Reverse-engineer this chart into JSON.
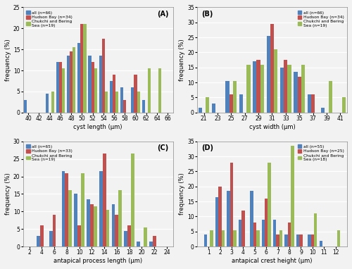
{
  "A": {
    "title": "(A)",
    "xlabel": "cyst length (μm)",
    "ylabel": "frequency (%)",
    "xlim": [
      39,
      67
    ],
    "ylim": [
      0,
      25
    ],
    "xticks": [
      40,
      42,
      44,
      46,
      48,
      50,
      52,
      54,
      56,
      58,
      60,
      62,
      64,
      66
    ],
    "yticks": [
      0,
      5,
      10,
      15,
      20,
      25
    ],
    "legend_loc": "upper left",
    "bin_width": 2,
    "all_n": 66,
    "hb_n": 34,
    "cb_n": 19,
    "all": {
      "40": 3.0,
      "44": 4.5,
      "46": 12.0,
      "48": 13.5,
      "50": 16.5,
      "52": 13.5,
      "54": 13.5,
      "56": 7.5,
      "58": 6.0,
      "60": 6.0,
      "62": 3.0
    },
    "hb": {
      "46": 12.0,
      "48": 14.5,
      "50": 21.0,
      "52": 12.0,
      "54": 17.5,
      "56": 9.0,
      "58": 3.0,
      "60": 9.0
    },
    "cb": {
      "44": 5.0,
      "46": 10.5,
      "48": 15.5,
      "50": 21.0,
      "52": 10.5,
      "54": 5.0,
      "56": 5.0,
      "60": 5.0,
      "62": 10.5,
      "64": 10.5
    }
  },
  "B": {
    "title": "(B)",
    "xlabel": "cyst width (μm)",
    "ylabel": "frequency (%)",
    "xlim": [
      20,
      42
    ],
    "ylim": [
      0,
      35
    ],
    "xticks": [
      21,
      23,
      25,
      27,
      29,
      31,
      33,
      35,
      37,
      39,
      41
    ],
    "yticks": [
      0,
      5,
      10,
      15,
      20,
      25,
      30,
      35
    ],
    "legend_loc": "upper right",
    "bin_width": 2,
    "all_n": 66,
    "hb_n": 34,
    "cb_n": 19,
    "all": {
      "21": 1.5,
      "23": 3.0,
      "25": 10.5,
      "27": 6.0,
      "29": 17.0,
      "31": 25.5,
      "33": 15.0,
      "35": 13.5,
      "37": 6.0,
      "39": 1.5
    },
    "hb": {
      "25": 6.0,
      "29": 17.5,
      "31": 29.5,
      "33": 17.5,
      "35": 12.0,
      "37": 6.0
    },
    "cb": {
      "21": 5.0,
      "25": 10.5,
      "27": 16.0,
      "29": 16.0,
      "31": 21.0,
      "33": 16.0,
      "35": 16.0,
      "39": 10.5,
      "41": 5.0
    }
  },
  "C": {
    "title": "(C)",
    "xlabel": "antapical process length (μm)",
    "ylabel": "frequency (%)",
    "xlim": [
      1,
      25
    ],
    "ylim": [
      0,
      30
    ],
    "xticks": [
      2,
      4,
      6,
      8,
      10,
      12,
      14,
      16,
      18,
      20,
      22,
      24
    ],
    "yticks": [
      0,
      5,
      10,
      15,
      20,
      25,
      30
    ],
    "legend_loc": "upper left",
    "bin_width": 2,
    "all_n": 65,
    "hb_n": 33,
    "cb_n": 19,
    "all": {
      "4": 3.0,
      "6": 4.5,
      "8": 21.5,
      "10": 15.0,
      "12": 13.5,
      "14": 21.5,
      "16": 12.0,
      "18": 4.5,
      "20": 1.5,
      "22": 1.5
    },
    "hb": {
      "4": 6.0,
      "6": 9.0,
      "8": 21.0,
      "10": 6.0,
      "12": 12.0,
      "14": 26.5,
      "16": 9.0,
      "18": 6.0,
      "22": 3.0
    },
    "cb": {
      "8": 16.0,
      "10": 21.0,
      "12": 11.5,
      "14": 10.5,
      "16": 16.0,
      "18": 26.5,
      "20": 5.5
    }
  },
  "D": {
    "title": "(D)",
    "xlabel": "antapical crest height (μm)",
    "ylabel": "frequency (%)",
    "xlim": [
      0,
      13
    ],
    "ylim": [
      0,
      35
    ],
    "xticks": [
      1,
      2,
      3,
      4,
      5,
      6,
      7,
      8,
      9,
      10,
      11,
      12
    ],
    "yticks": [
      0,
      5,
      10,
      15,
      20,
      25,
      30,
      35
    ],
    "legend_loc": "upper right",
    "bin_width": 1,
    "all_n": 55,
    "hb_n": 25,
    "cb_n": 18,
    "all": {
      "1": 4.0,
      "2": 16.5,
      "3": 18.5,
      "4": 9.0,
      "5": 18.5,
      "6": 9.0,
      "7": 9.0,
      "8": 4.0,
      "9": 4.0,
      "10": 4.0,
      "11": 2.0
    },
    "hb": {
      "2": 20.0,
      "3": 28.0,
      "4": 12.0,
      "5": 8.0,
      "6": 16.0,
      "7": 4.0,
      "8": 8.0,
      "9": 4.0,
      "10": 4.0
    },
    "cb": {
      "1": 5.5,
      "2": 5.5,
      "3": 5.5,
      "5": 5.5,
      "6": 28.0,
      "7": 5.5,
      "8": 33.5,
      "10": 11.0,
      "12": 5.5
    }
  },
  "colors": {
    "all": "#4f81bd",
    "hb": "#c0504d",
    "cb": "#9bbb59"
  },
  "bg_color": "#f2f2f2"
}
